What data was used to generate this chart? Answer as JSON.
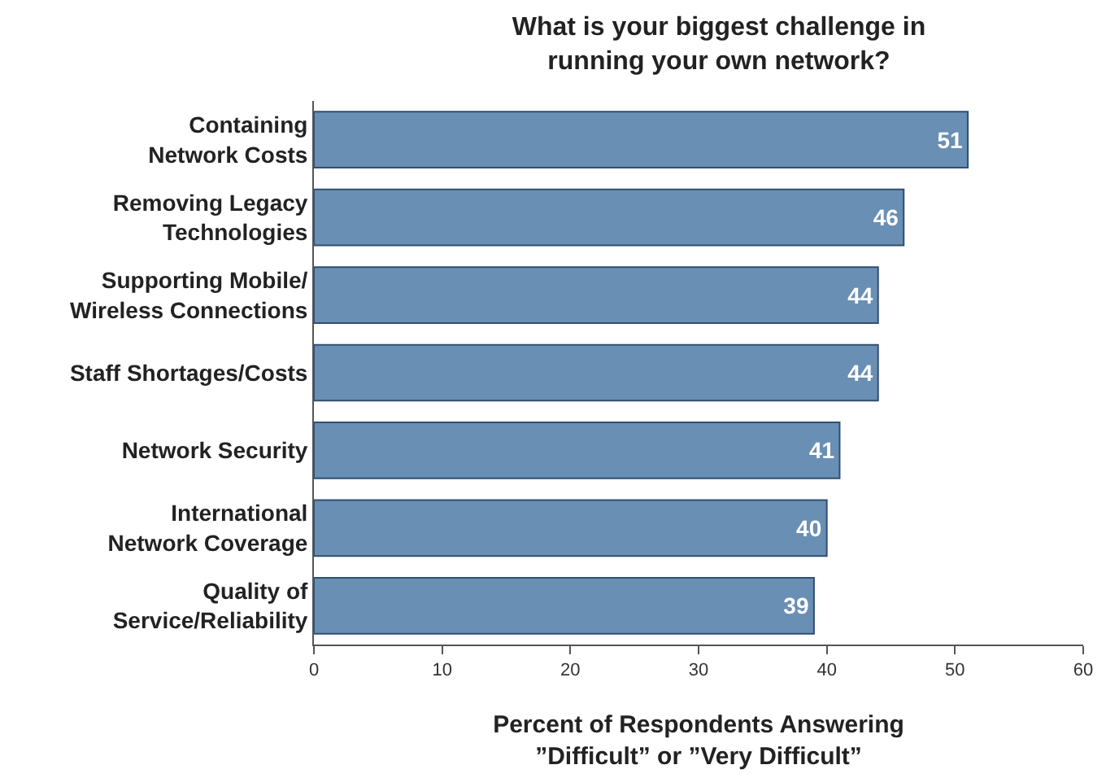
{
  "chart_data": {
    "type": "bar",
    "orientation": "horizontal",
    "title": "What is your biggest challenge in\nrunning your own network?",
    "categories": [
      "Containing\nNetwork Costs",
      "Removing Legacy\nTechnologies",
      "Supporting Mobile/\nWireless Connections",
      "Staff Shortages/Costs",
      "Network Security",
      "International\nNetwork Coverage",
      "Quality of\nService/Reliability"
    ],
    "values": [
      51,
      46,
      44,
      44,
      41,
      40,
      39
    ],
    "color": "#6a8fb5",
    "xlim": [
      0,
      60
    ],
    "xticks": [
      0,
      10,
      20,
      30,
      40,
      50,
      60
    ],
    "xlabel": "Percent of Respondents Answering\n”Difficult” or ”Very Difficult”",
    "data_labels": true
  }
}
